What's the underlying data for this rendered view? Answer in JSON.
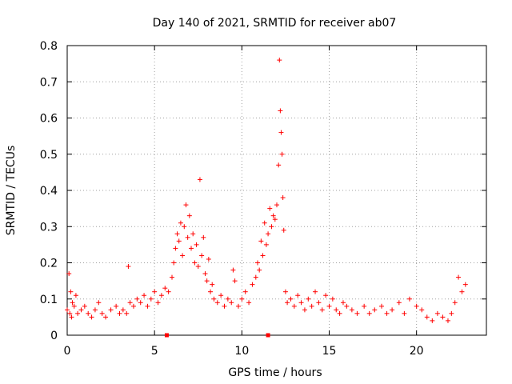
{
  "chart_data": {
    "type": "scatter",
    "title": "Day 140 of 2021, SRMTID for receiver ab07",
    "xlabel": "GPS time / hours",
    "ylabel": "SRMTID / TECUs",
    "xlim": [
      0,
      24
    ],
    "ylim": [
      0,
      0.8
    ],
    "grid": true,
    "marker": "+",
    "marker_color": "#ff0000",
    "x_ticks": [
      0,
      5,
      10,
      15,
      20
    ],
    "x_tick_labels": [
      "0",
      "5",
      "10",
      "15",
      "20"
    ],
    "y_ticks": [
      0,
      0.1,
      0.2,
      0.3,
      0.4,
      0.5,
      0.6,
      0.7,
      0.8
    ],
    "y_tick_labels": [
      "0",
      "0.1",
      "0.2",
      "0.3",
      "0.4",
      "0.5",
      "0.6",
      "0.7",
      "0.8"
    ],
    "series": [
      {
        "name": "SRMTID",
        "x": [
          0.0,
          0.1,
          0.15,
          0.2,
          0.25,
          0.3,
          0.4,
          0.5,
          0.6,
          0.8,
          1.0,
          1.2,
          1.4,
          1.6,
          1.8,
          2.0,
          2.2,
          2.5,
          2.8,
          3.0,
          3.2,
          3.4,
          3.5,
          3.6,
          3.8,
          4.0,
          4.2,
          4.4,
          4.6,
          4.8,
          5.0,
          5.2,
          5.4,
          5.6,
          5.8,
          6.0,
          6.1,
          6.2,
          6.3,
          6.4,
          6.5,
          6.6,
          6.7,
          6.8,
          6.9,
          7.0,
          7.1,
          7.2,
          7.3,
          7.4,
          7.5,
          7.6,
          7.7,
          7.8,
          7.9,
          8.0,
          8.1,
          8.2,
          8.3,
          8.4,
          8.6,
          8.8,
          9.0,
          9.2,
          9.4,
          9.5,
          9.6,
          9.8,
          10.0,
          10.2,
          10.4,
          10.6,
          10.8,
          10.9,
          11.0,
          11.1,
          11.2,
          11.3,
          11.4,
          11.5,
          11.6,
          11.7,
          11.8,
          11.9,
          12.0,
          12.1,
          12.15,
          12.2,
          12.25,
          12.3,
          12.35,
          12.4,
          12.5,
          12.6,
          12.8,
          13.0,
          13.2,
          13.4,
          13.6,
          13.8,
          14.0,
          14.2,
          14.4,
          14.6,
          14.8,
          15.0,
          15.2,
          15.4,
          15.6,
          15.8,
          16.0,
          16.3,
          16.6,
          17.0,
          17.3,
          17.6,
          18.0,
          18.3,
          18.6,
          19.0,
          19.3,
          19.6,
          20.0,
          20.3,
          20.6,
          20.9,
          21.2,
          21.5,
          21.8,
          22.0,
          22.2,
          22.4,
          22.6,
          22.8
        ],
        "y": [
          0.07,
          0.17,
          0.06,
          0.12,
          0.05,
          0.09,
          0.08,
          0.11,
          0.06,
          0.07,
          0.08,
          0.06,
          0.05,
          0.07,
          0.09,
          0.06,
          0.05,
          0.07,
          0.08,
          0.06,
          0.07,
          0.06,
          0.19,
          0.09,
          0.08,
          0.1,
          0.09,
          0.11,
          0.08,
          0.1,
          0.12,
          0.09,
          0.11,
          0.13,
          0.12,
          0.16,
          0.2,
          0.24,
          0.28,
          0.26,
          0.31,
          0.22,
          0.3,
          0.36,
          0.27,
          0.33,
          0.24,
          0.28,
          0.2,
          0.25,
          0.19,
          0.43,
          0.22,
          0.27,
          0.17,
          0.15,
          0.21,
          0.12,
          0.14,
          0.1,
          0.09,
          0.11,
          0.08,
          0.1,
          0.09,
          0.18,
          0.15,
          0.08,
          0.1,
          0.12,
          0.09,
          0.14,
          0.16,
          0.2,
          0.18,
          0.26,
          0.22,
          0.31,
          0.25,
          0.28,
          0.35,
          0.3,
          0.33,
          0.32,
          0.36,
          0.47,
          0.76,
          0.62,
          0.56,
          0.5,
          0.38,
          0.29,
          0.12,
          0.09,
          0.1,
          0.08,
          0.11,
          0.09,
          0.07,
          0.1,
          0.08,
          0.12,
          0.09,
          0.07,
          0.11,
          0.08,
          0.1,
          0.07,
          0.06,
          0.09,
          0.08,
          0.07,
          0.06,
          0.08,
          0.06,
          0.07,
          0.08,
          0.06,
          0.07,
          0.09,
          0.06,
          0.1,
          0.08,
          0.07,
          0.05,
          0.04,
          0.06,
          0.05,
          0.04,
          0.06,
          0.09,
          0.16,
          0.12,
          0.14
        ]
      }
    ],
    "x_markers": [
      5.7,
      11.5
    ]
  }
}
